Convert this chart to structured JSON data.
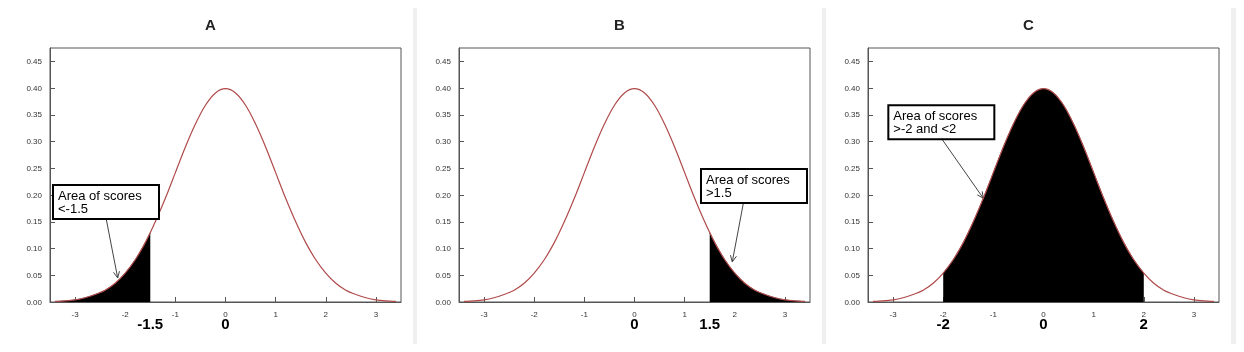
{
  "chart_data": [
    {
      "type": "line",
      "title": "A",
      "xlim": [
        -3.5,
        3.5
      ],
      "xticks": [
        -3,
        -2,
        -1,
        0,
        1,
        2,
        3
      ],
      "ylim": [
        0,
        0.475
      ],
      "yticks": [
        {
          "value": 0,
          "label": "0.00"
        },
        {
          "value": 0.05,
          "label": "0.05"
        },
        {
          "value": 0.1,
          "label": "0.10"
        },
        {
          "value": 0.15,
          "label": "0.15"
        },
        {
          "value": 0.2,
          "label": "0.20"
        },
        {
          "value": 0.25,
          "label": "0.25"
        },
        {
          "value": 0.3,
          "label": "0.30"
        },
        {
          "value": 0.35,
          "label": "0.35"
        },
        {
          "value": 0.4,
          "label": "0.40"
        },
        {
          "value": 0.45,
          "label": "0.45"
        }
      ],
      "grid": false,
      "marker": "none",
      "series": [
        {
          "color": "#b04a4a",
          "x": [
            -3.4,
            -3.2,
            -3.0,
            -2.8,
            -2.6,
            -2.4,
            -2.2,
            -2.0,
            -1.8,
            -1.6,
            -1.4,
            -1.2,
            -1.0,
            -0.8,
            -0.6,
            -0.4,
            -0.2,
            0,
            0.2,
            0.4,
            0.6,
            0.8,
            1.0,
            1.2,
            1.4,
            1.6,
            1.8,
            2.0,
            2.2,
            2.4,
            2.6,
            2.8,
            3.0,
            3.2,
            3.4
          ],
          "values": [
            0.001,
            0.002,
            0.004,
            0.008,
            0.014,
            0.022,
            0.035,
            0.054,
            0.079,
            0.111,
            0.15,
            0.194,
            0.242,
            0.29,
            0.333,
            0.368,
            0.391,
            0.399,
            0.391,
            0.368,
            0.333,
            0.29,
            0.242,
            0.194,
            0.15,
            0.111,
            0.079,
            0.054,
            0.035,
            0.022,
            0.014,
            0.008,
            0.004,
            0.002,
            0.001
          ]
        },
        {
          "type": "area",
          "color": "#000000",
          "x": [
            -3.4,
            -3.2,
            -3.0,
            -2.8,
            -2.6,
            -2.4,
            -2.2,
            -2.0,
            -1.8,
            -1.6,
            -1.5
          ],
          "values": [
            0.001,
            0.002,
            0.004,
            0.008,
            0.014,
            0.022,
            0.035,
            0.054,
            0.079,
            0.111,
            0.13
          ]
        }
      ],
      "x2lim": [
        -3.5,
        3.5
      ],
      "x2ticks": [
        -1.5,
        0
      ],
      "annotations": [
        {
          "text": "Area of scores <-1.5",
          "x": -2.15,
          "y": 0.045
        }
      ]
    },
    {
      "type": "line",
      "title": "B",
      "xlim": [
        -3.5,
        3.5
      ],
      "xticks": [
        -3,
        -2,
        -1,
        0,
        1,
        2,
        3
      ],
      "ylim": [
        0,
        0.475
      ],
      "yticks": [
        {
          "value": 0,
          "label": "0.00"
        },
        {
          "value": 0.05,
          "label": "0.05"
        },
        {
          "value": 0.1,
          "label": "0.10"
        },
        {
          "value": 0.15,
          "label": "0.15"
        },
        {
          "value": 0.2,
          "label": "0.20"
        },
        {
          "value": 0.25,
          "label": "0.25"
        },
        {
          "value": 0.3,
          "label": "0.30"
        },
        {
          "value": 0.35,
          "label": "0.35"
        },
        {
          "value": 0.4,
          "label": "0.40"
        },
        {
          "value": 0.45,
          "label": "0.45"
        }
      ],
      "grid": false,
      "marker": "none",
      "series": [
        {
          "color": "#b04a4a",
          "x": [
            -3.4,
            -3.2,
            -3.0,
            -2.8,
            -2.6,
            -2.4,
            -2.2,
            -2.0,
            -1.8,
            -1.6,
            -1.4,
            -1.2,
            -1.0,
            -0.8,
            -0.6,
            -0.4,
            -0.2,
            0,
            0.2,
            0.4,
            0.6,
            0.8,
            1.0,
            1.2,
            1.4,
            1.6,
            1.8,
            2.0,
            2.2,
            2.4,
            2.6,
            2.8,
            3.0,
            3.2,
            3.4
          ],
          "values": [
            0.001,
            0.002,
            0.004,
            0.008,
            0.014,
            0.022,
            0.035,
            0.054,
            0.079,
            0.111,
            0.15,
            0.194,
            0.242,
            0.29,
            0.333,
            0.368,
            0.391,
            0.399,
            0.391,
            0.368,
            0.333,
            0.29,
            0.242,
            0.194,
            0.15,
            0.111,
            0.079,
            0.054,
            0.035,
            0.022,
            0.014,
            0.008,
            0.004,
            0.002,
            0.001
          ]
        },
        {
          "type": "area",
          "color": "#000000",
          "x": [
            1.5,
            1.6,
            1.8,
            2.0,
            2.2,
            2.4,
            2.6,
            2.8,
            3.0,
            3.2,
            3.4
          ],
          "values": [
            0.13,
            0.111,
            0.079,
            0.054,
            0.035,
            0.022,
            0.014,
            0.008,
            0.004,
            0.002,
            0.001
          ]
        }
      ],
      "x2lim": [
        -3.5,
        3.5
      ],
      "x2ticks": [
        0,
        1.5
      ],
      "annotations": [
        {
          "text": "Area of scores >1.5",
          "x": 1.95,
          "y": 0.075
        }
      ]
    },
    {
      "type": "line",
      "title": "C",
      "xlim": [
        -3.5,
        3.5
      ],
      "xticks": [
        -3,
        -2,
        -1,
        0,
        1,
        2,
        3
      ],
      "ylim": [
        0,
        0.475
      ],
      "yticks": [
        {
          "value": 0,
          "label": "0.00"
        },
        {
          "value": 0.05,
          "label": "0.05"
        },
        {
          "value": 0.1,
          "label": "0.10"
        },
        {
          "value": 0.15,
          "label": "0.15"
        },
        {
          "value": 0.2,
          "label": "0.20"
        },
        {
          "value": 0.25,
          "label": "0.25"
        },
        {
          "value": 0.3,
          "label": "0.30"
        },
        {
          "value": 0.35,
          "label": "0.35"
        },
        {
          "value": 0.4,
          "label": "0.40"
        },
        {
          "value": 0.45,
          "label": "0.45"
        }
      ],
      "grid": false,
      "marker": "none",
      "series": [
        {
          "color": "#b04a4a",
          "x": [
            -3.4,
            -3.2,
            -3.0,
            -2.8,
            -2.6,
            -2.4,
            -2.2,
            -2.0,
            -1.8,
            -1.6,
            -1.4,
            -1.2,
            -1.0,
            -0.8,
            -0.6,
            -0.4,
            -0.2,
            0,
            0.2,
            0.4,
            0.6,
            0.8,
            1.0,
            1.2,
            1.4,
            1.6,
            1.8,
            2.0,
            2.2,
            2.4,
            2.6,
            2.8,
            3.0,
            3.2,
            3.4
          ],
          "values": [
            0.001,
            0.002,
            0.004,
            0.008,
            0.014,
            0.022,
            0.035,
            0.054,
            0.079,
            0.111,
            0.15,
            0.194,
            0.242,
            0.29,
            0.333,
            0.368,
            0.391,
            0.399,
            0.391,
            0.368,
            0.333,
            0.29,
            0.242,
            0.194,
            0.15,
            0.111,
            0.079,
            0.054,
            0.035,
            0.022,
            0.014,
            0.008,
            0.004,
            0.002,
            0.001
          ]
        },
        {
          "type": "area",
          "color": "#000000",
          "x": [
            -2.0,
            -1.8,
            -1.6,
            -1.4,
            -1.2,
            -1.0,
            -0.8,
            -0.6,
            -0.4,
            -0.2,
            0,
            0.2,
            0.4,
            0.6,
            0.8,
            1.0,
            1.2,
            1.4,
            1.6,
            1.8,
            2.0
          ],
          "values": [
            0.054,
            0.079,
            0.111,
            0.15,
            0.194,
            0.242,
            0.29,
            0.333,
            0.368,
            0.391,
            0.399,
            0.391,
            0.368,
            0.333,
            0.29,
            0.242,
            0.194,
            0.15,
            0.111,
            0.079,
            0.054
          ]
        }
      ],
      "x2lim": [
        -3.5,
        3.5
      ],
      "x2ticks": [
        -2,
        0,
        2
      ],
      "annotations": [
        {
          "text": "Area of scores >-2 and <2",
          "x": -1.2,
          "y": 0.194
        }
      ]
    }
  ]
}
